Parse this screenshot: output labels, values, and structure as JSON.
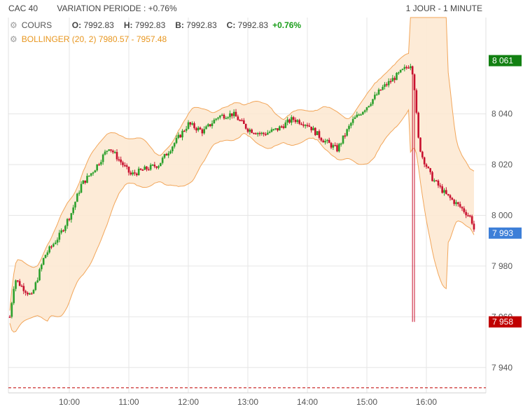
{
  "header": {
    "instrument": "CAC 40",
    "variation": "VARIATION PERIODE : +0.76%",
    "period": "1 JOUR - 1 MINUTE"
  },
  "legend": {
    "cours_label": "COURS",
    "o_label": "O:",
    "o_value": "7992.83",
    "h_label": "H:",
    "h_value": "7992.83",
    "b_label": "B:",
    "b_value": "7992.83",
    "c_label": "C:",
    "c_value": "7992.83",
    "change": "+0.76%",
    "bollinger": "BOLLINGER (20, 2) 7980.57 - 7957.48"
  },
  "colors": {
    "up": "#2ca02c",
    "down": "#c8102e",
    "band_fill": "#fde8d0",
    "band_line": "#f2a65a",
    "high_tag": "#128012",
    "last_tag": "#3d7fd8",
    "low_tag": "#c00000",
    "ref_line": "#c00000"
  },
  "chart_data": {
    "type": "candlestick",
    "x_ticks": [
      "10:00",
      "11:00",
      "12:00",
      "13:00",
      "14:00",
      "15:00",
      "16:00"
    ],
    "y_ticks": [
      "7 940",
      "7 960",
      "7 980",
      "8 000",
      "8 020",
      "8 040"
    ],
    "y_tick_values": [
      7940,
      7960,
      7980,
      8000,
      8020,
      8040
    ],
    "ylim": [
      7930,
      8078
    ],
    "x_range": [
      "09:00",
      "17:05"
    ],
    "grid": true,
    "high_marker": {
      "label": "8 061",
      "value": 8061
    },
    "last_marker": {
      "label": "7 993",
      "value": 7993
    },
    "low_marker": {
      "label": "7 958",
      "value": 7958
    },
    "reference_line": 7932,
    "price_path": [
      [
        0,
        7960
      ],
      [
        5,
        7975
      ],
      [
        12,
        7972
      ],
      [
        22,
        7968
      ],
      [
        35,
        7984
      ],
      [
        50,
        7992
      ],
      [
        62,
        8001
      ],
      [
        72,
        8012
      ],
      [
        85,
        8018
      ],
      [
        100,
        8027
      ],
      [
        112,
        8021
      ],
      [
        122,
        8016
      ],
      [
        135,
        8018
      ],
      [
        150,
        8020
      ],
      [
        165,
        8028
      ],
      [
        180,
        8036
      ],
      [
        195,
        8033
      ],
      [
        210,
        8039
      ],
      [
        225,
        8040
      ],
      [
        240,
        8034
      ],
      [
        255,
        8032
      ],
      [
        270,
        8034
      ],
      [
        285,
        8038
      ],
      [
        300,
        8036
      ],
      [
        315,
        8030
      ],
      [
        330,
        8026
      ],
      [
        345,
        8037
      ],
      [
        360,
        8043
      ],
      [
        375,
        8050
      ],
      [
        390,
        8055
      ],
      [
        405,
        8060
      ],
      [
        409,
        8047
      ],
      [
        411,
        8032
      ],
      [
        415,
        8024
      ],
      [
        425,
        8015
      ],
      [
        440,
        8008
      ],
      [
        455,
        8003
      ],
      [
        465,
        7999
      ],
      [
        469,
        7993
      ]
    ]
  }
}
